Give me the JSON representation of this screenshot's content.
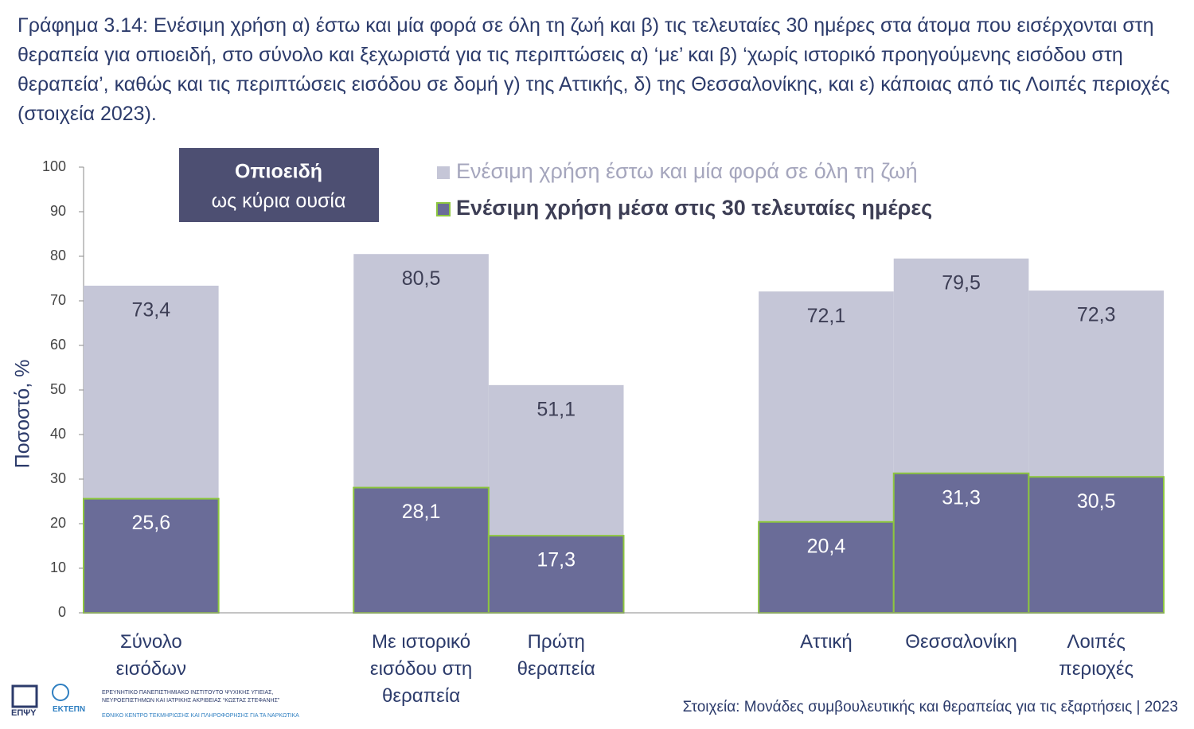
{
  "header": {
    "title": "Γράφημα 3.14: Ενέσιμη χρήση α) έστω και μία φορά σε όλη τη ζωή και β) τις τελευταίες 30 ημέρες στα άτομα που εισέρχονται στη θεραπεία για οπιοειδή, στο σύνολο και ξεχωριστά για τις περιπτώσεις α) ‘με’ και β) ‘χωρίς ιστορικό προηγούμενης εισόδου στη θεραπεία’, καθώς και τις περιπτώσεις εισόδου σε δομή γ) της Αττικής, δ) της Θεσσαλονίκης, και ε) κάποιας από τις Λοιπές περιοχές (στοιχεία 2023)."
  },
  "chart_data": {
    "type": "bar",
    "annotation": [
      "Οπιοειδή",
      "ως κύρια ουσία"
    ],
    "y_label": "Ποσοστό, %",
    "categories": [
      "Σύνολο εισόδων",
      null,
      "Με ιστορικό εισόδου στη θεραπεία",
      "Πρώτη θεραπεία",
      null,
      "Αττική",
      "Θεσσαλονίκη",
      "Λοιπές περιοχές"
    ],
    "series": [
      {
        "name": "Ενέσιμη χρήση έστω και μία φορά σε όλη τη ζωή",
        "color": "#c5c6d7",
        "label_color": "#3d3e55",
        "values": [
          73.4,
          null,
          80.5,
          51.1,
          null,
          72.1,
          79.5,
          72.3
        ],
        "value_labels": [
          "73,4",
          null,
          "80,5",
          "51,1",
          null,
          "72,1",
          "79,5",
          "72,3"
        ]
      },
      {
        "name": "Ενέσιμη χρήση μέσα στις 30 τελευταίες ημέρες",
        "color": "#6a6c98",
        "edge_color": "#8dc63f",
        "label_color": "#ffffff",
        "values": [
          25.6,
          null,
          28.1,
          17.3,
          null,
          20.4,
          31.3,
          30.5
        ],
        "value_labels": [
          "25,6",
          null,
          "28,1",
          "17,3",
          null,
          "20,4",
          "31,3",
          "30,5"
        ]
      }
    ],
    "ylim": [
      0,
      100
    ],
    "yticks": [
      0,
      10,
      20,
      30,
      40,
      50,
      60,
      70,
      80,
      90,
      100
    ]
  },
  "footer": {
    "source": "Στοιχεία: Μονάδες συμβουλευτικής και θεραπείας για τις εξαρτήσεις | 2023",
    "logo_1": "ΕΠΨΥ",
    "logo_2": "ΕΚΤΕΠΝ",
    "institute": "ΕΡΕΥΝΗΤΙΚΟ ΠΑΝΕΠΙΣΤΗΜΙΑΚΟ ΙΝΣΤΙΤΟΥΤΟ ΨΥΧΙΚΗΣ ΥΓΙΕΙΑΣ, ΝΕΥΡΟΕΠΙΣΤΗΜΩΝ ΚΑΙ ΙΑΤΡΙΚΗΣ ΑΚΡΙΒΕΙΑΣ “ΚΩΣΤΑΣ ΣΤΕΦΑΝΗΣ”",
    "centre": "ΕΘΝΙΚΟ ΚΕΝΤΡΟ ΤΕΚΜΗΡΙΩΣΗΣ ΚΑΙ ΠΛΗΡΟΦΟΡΗΣΗΣ ΓΙΑ ΤΑ ΝΑΡΚΩΤΙΚΑ"
  }
}
